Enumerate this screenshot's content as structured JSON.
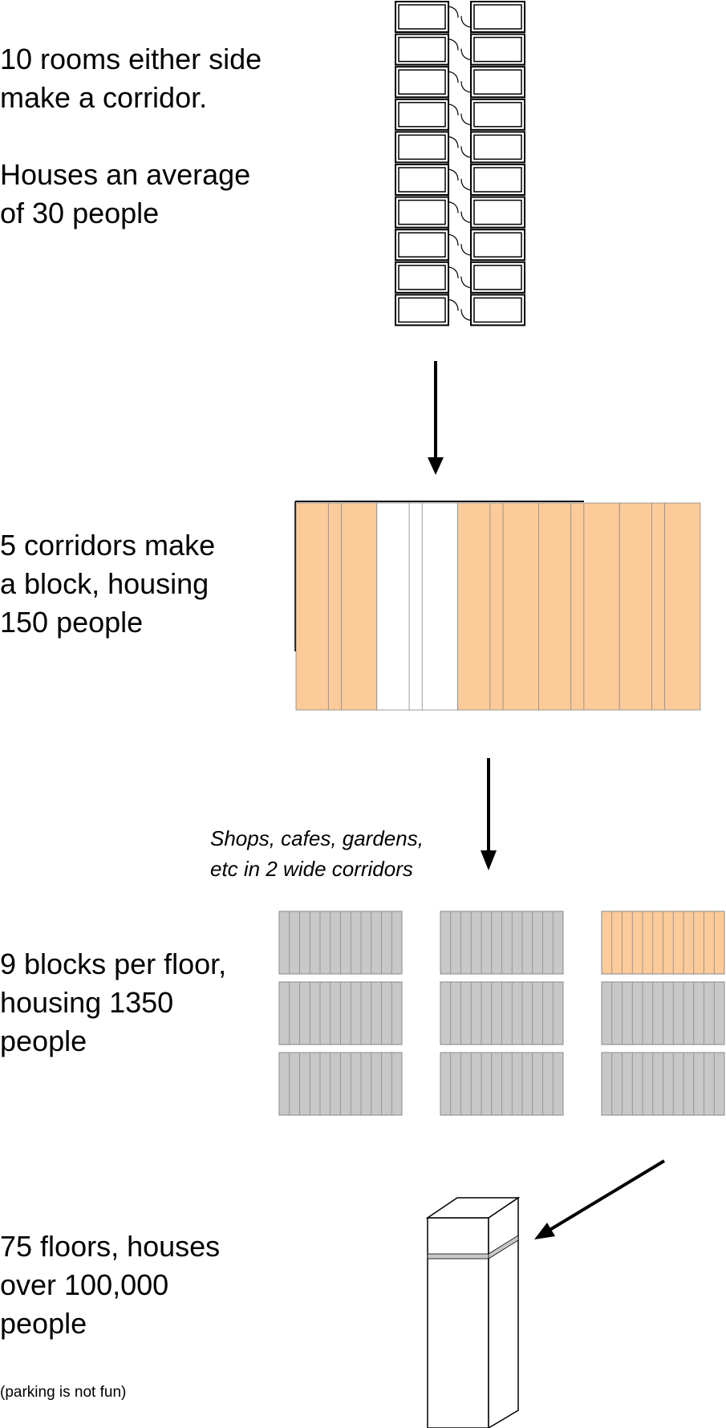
{
  "steps": [
    {
      "lines": [
        "10 rooms either side",
        "make a corridor."
      ]
    },
    {
      "lines": [
        "Houses an average",
        "of 30 people"
      ]
    },
    {
      "lines": [
        "5 corridors make",
        "a block, housing",
        "150 people"
      ]
    },
    {
      "lines": [
        "9 blocks per floor,",
        "housing 1350",
        "people"
      ]
    },
    {
      "lines": [
        "75 floors, houses",
        "over 100,000",
        "people"
      ]
    }
  ],
  "shops_note": {
    "lines": [
      "Shops, cafes, gardens,",
      "etc in 2 wide corridors"
    ]
  },
  "parking_note": "(parking is not fun)",
  "corridor": {
    "rooms_per_side": 10
  },
  "block": {
    "corridors": 5,
    "amenity_corridors": 2
  },
  "floor": {
    "blocks": 9,
    "highlighted_block": 2
  },
  "tower": {
    "floors": 75
  },
  "colors": {
    "residential": "#fccb99",
    "amenity": "#ffffff",
    "block_gray": "#c8c8c8",
    "outline": "#000000",
    "line_gray": "#888888"
  }
}
